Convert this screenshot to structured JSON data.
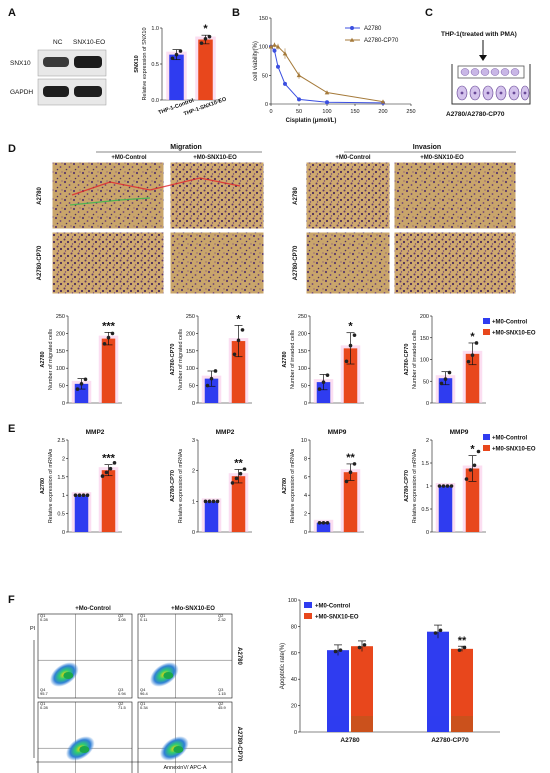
{
  "colors": {
    "control": "#2f3cf0",
    "eo": "#e8471c",
    "halo": "#f8c8e8",
    "line_a2780": "#3b4fe0",
    "line_cp70": "#a57a3a"
  },
  "panels": {
    "A": {
      "letter": "A",
      "blot": {
        "lanes": [
          "NC",
          "SNX10-EO"
        ],
        "rows": [
          "SNX10",
          "GAPDH"
        ]
      }
    },
    "B": {
      "letter": "B"
    },
    "C": {
      "letter": "C",
      "top_label": "THP-1(treated with PMA)",
      "bottom_label": "A2780/A2780-CP70"
    },
    "D": {
      "letter": "D",
      "migration_title": "Migration",
      "invasion_title": "Invasion",
      "columns": [
        "+M0-Control",
        "+M0-SNX10-EO"
      ],
      "rows": [
        "A2780",
        "A2780-CP70"
      ],
      "legend": [
        "+M0-Control",
        "+M0-SNX10-EO"
      ]
    },
    "E": {
      "letter": "E",
      "legend": [
        "+M0-Control",
        "+M0-SNX10-EO"
      ]
    },
    "F": {
      "letter": "F",
      "columns": [
        "+Mo-Control",
        "+Mo-SNX10-EO"
      ],
      "rows": [
        "A2780",
        "A2780-CP70"
      ],
      "y_axis": "PI",
      "x_axis": "AnnexinV/ APC-A",
      "quadrants": [
        [
          [
            "0.28",
            "3.05",
            "95.7",
            "0.94"
          ],
          [
            "0.11",
            "2.32",
            "96.4",
            "1.15"
          ]
        ],
        [
          [
            "0.28",
            "71.5",
            "6.32",
            "21.9"
          ],
          [
            "0.34",
            "45.9",
            "37.2",
            "16.7"
          ]
        ]
      ],
      "quadrant_names": [
        "Q1",
        "Q2",
        "Q4",
        "Q3"
      ],
      "legend": [
        "+M0-Control",
        "+M0-SNX10-EO"
      ]
    }
  },
  "chart_data": [
    {
      "id": "A",
      "type": "bar",
      "categories": [
        "THP-1-Control",
        "THP-1-SNX10-EO"
      ],
      "values": [
        0.63,
        0.84
      ],
      "errors": [
        0.07,
        0.06
      ],
      "points": [
        [
          0.58,
          0.63,
          0.68
        ],
        [
          0.79,
          0.85,
          0.88
        ]
      ],
      "ylabel": "Relative expression of SNX10",
      "ylabel2": "SNX10",
      "ylim": [
        0,
        1.0
      ],
      "yticks": [
        0.0,
        0.5,
        1.0
      ],
      "significance": [
        "",
        "*"
      ]
    },
    {
      "id": "B",
      "type": "line",
      "xlabel": "Cisplatin (μmol/L)",
      "ylabel": "cell viability(%)",
      "xlim": [
        0,
        250
      ],
      "ylim": [
        0,
        150
      ],
      "xticks": [
        0,
        50,
        100,
        150,
        200,
        250
      ],
      "yticks": [
        0,
        50,
        100,
        150
      ],
      "legend_position": "top-right",
      "series": [
        {
          "name": "A2780",
          "x": [
            0,
            6.25,
            12.5,
            25,
            50,
            100,
            200
          ],
          "y": [
            100,
            93,
            65,
            35,
            8,
            3,
            2
          ],
          "err": [
            3,
            4,
            3,
            3,
            2,
            1,
            1
          ]
        },
        {
          "name": "A2780-CP70",
          "x": [
            0,
            6.25,
            12.5,
            25,
            50,
            100,
            200
          ],
          "y": [
            100,
            103,
            100,
            88,
            50,
            20,
            4
          ],
          "err": [
            4,
            4,
            5,
            9,
            6,
            3,
            1
          ]
        }
      ]
    },
    {
      "id": "D1",
      "type": "bar",
      "categories": [
        "+M0-Control",
        "+M0-SNX10-EO"
      ],
      "values": [
        55,
        185
      ],
      "errors": [
        15,
        18
      ],
      "points": [
        [
          40,
          55,
          68
        ],
        [
          170,
          188,
          200
        ]
      ],
      "ylim": [
        0,
        250
      ],
      "yticks": [
        0,
        50,
        100,
        150,
        200,
        250
      ],
      "ylabel": "Number of migrated cells",
      "ylabel2": "A2780",
      "significance": [
        "",
        "***"
      ]
    },
    {
      "id": "D2",
      "type": "bar",
      "categories": [
        "+M0-Control",
        "+M0-SNX10-EO"
      ],
      "values": [
        70,
        178
      ],
      "errors": [
        22,
        45
      ],
      "points": [
        [
          50,
          70,
          92
        ],
        [
          140,
          180,
          210
        ]
      ],
      "ylim": [
        0,
        250
      ],
      "yticks": [
        0,
        50,
        100,
        150,
        200,
        250
      ],
      "ylabel": "Number of migrated cells",
      "ylabel2": "A2780-CP70",
      "significance": [
        "",
        "*"
      ]
    },
    {
      "id": "D3",
      "type": "bar",
      "categories": [
        "+M0-Control",
        "+M0-SNX10-EO"
      ],
      "values": [
        60,
        157
      ],
      "errors": [
        22,
        45
      ],
      "points": [
        [
          40,
          60,
          80
        ],
        [
          120,
          165,
          195
        ]
      ],
      "ylim": [
        0,
        250
      ],
      "yticks": [
        0,
        50,
        100,
        150,
        200,
        250
      ],
      "ylabel": "Number of invaded cells",
      "ylabel2": "A2780",
      "significance": [
        "",
        "*"
      ]
    },
    {
      "id": "D4",
      "type": "bar",
      "categories": [
        "+M0-Control",
        "+M0-SNX10-EO"
      ],
      "values": [
        57,
        113
      ],
      "errors": [
        15,
        25
      ],
      "points": [
        [
          45,
          55,
          70
        ],
        [
          95,
          110,
          138
        ]
      ],
      "ylim": [
        0,
        200
      ],
      "yticks": [
        0,
        50,
        100,
        150,
        200
      ],
      "ylabel": "Number of invaded cells",
      "ylabel2": "A2780-CP70",
      "significance": [
        "",
        "*"
      ]
    },
    {
      "id": "E1",
      "type": "bar",
      "title": "MMP2",
      "categories": [
        "+M0-Control",
        "+M0-SNX10-EO"
      ],
      "values": [
        1.0,
        1.68
      ],
      "errors": [
        0.0,
        0.15
      ],
      "points": [
        [
          1,
          1,
          1,
          1
        ],
        [
          1.52,
          1.62,
          1.72,
          1.88
        ]
      ],
      "ylim": [
        0,
        2.5
      ],
      "yticks": [
        0.0,
        0.5,
        1.0,
        1.5,
        2.0,
        2.5
      ],
      "ylabel": "Relative expression of mRNAs",
      "ylabel2": "A2780",
      "significance": [
        "",
        "***"
      ]
    },
    {
      "id": "E2",
      "type": "bar",
      "title": "MMP2",
      "categories": [
        "+M0-Control",
        "+M0-SNX10-EO"
      ],
      "values": [
        1.0,
        1.82
      ],
      "errors": [
        0.0,
        0.22
      ],
      "points": [
        [
          1,
          1,
          1,
          1
        ],
        [
          1.6,
          1.75,
          1.9,
          2.05
        ]
      ],
      "ylim": [
        0,
        3
      ],
      "yticks": [
        0,
        1,
        2,
        3
      ],
      "ylabel": "Relative expression of mRNAs",
      "ylabel2": "A2780-CP70",
      "significance": [
        "",
        "**"
      ]
    },
    {
      "id": "E3",
      "type": "bar",
      "title": "MMP9",
      "categories": [
        "+M0-Control",
        "+M0-SNX10-EO"
      ],
      "values": [
        1.0,
        6.5
      ],
      "errors": [
        0.05,
        0.9
      ],
      "points": [
        [
          1,
          1,
          1
        ],
        [
          5.5,
          6.5,
          7.4
        ]
      ],
      "ylim": [
        0,
        10
      ],
      "yticks": [
        0,
        2,
        4,
        6,
        8,
        10
      ],
      "ylabel": "Relative expression of mRNAs",
      "ylabel2": "A2780",
      "significance": [
        "",
        "**"
      ]
    },
    {
      "id": "E4",
      "type": "bar",
      "title": "MMP9",
      "categories": [
        "+M0-Control",
        "+M0-SNX10-EO"
      ],
      "values": [
        1.0,
        1.38
      ],
      "errors": [
        0.0,
        0.28
      ],
      "points": [
        [
          1,
          1,
          1,
          1
        ],
        [
          1.15,
          1.35,
          1.45,
          1.75
        ]
      ],
      "ylim": [
        0,
        2.0
      ],
      "yticks": [
        0.0,
        0.5,
        1.0,
        1.5,
        2.0
      ],
      "ylabel": "Relative expression of mRNAs",
      "ylabel2": "A2780-CP70",
      "significance": [
        "",
        "*"
      ]
    },
    {
      "id": "F",
      "type": "bar",
      "categories": [
        "A2780",
        "A2780-CP70"
      ],
      "ylabel": "Apoptotic rate(%)",
      "ylim": [
        0,
        100
      ],
      "yticks": [
        0,
        20,
        40,
        60,
        80,
        100
      ],
      "legend_position": "top-left",
      "series": [
        {
          "name": "+M0-Control",
          "values": [
            62,
            76
          ],
          "errors": [
            4,
            5
          ],
          "points": [
            [
              61,
              62
            ],
            [
              75,
              77
            ]
          ]
        },
        {
          "name": "+M0-SNX10-EO",
          "values": [
            65,
            63
          ],
          "errors": [
            4,
            2
          ],
          "points": [
            [
              64,
              66
            ],
            [
              62,
              64
            ]
          ]
        }
      ],
      "significance": [
        "",
        "**"
      ]
    }
  ]
}
